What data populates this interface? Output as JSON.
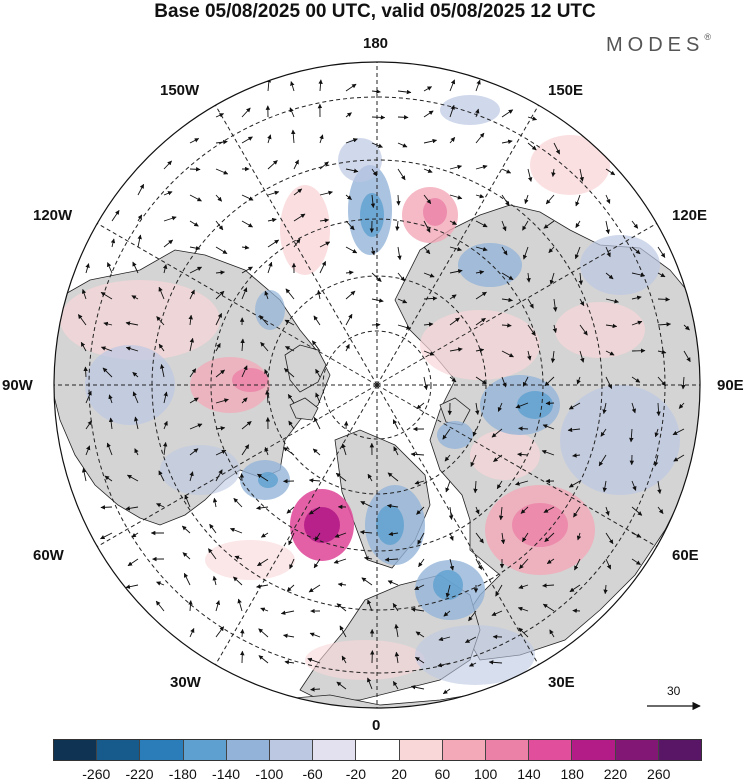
{
  "header": {
    "title": "Base 05/08/2025 00 UTC, valid 05/08/2025 12 UTC",
    "brand": "MODES",
    "brand_mark": "®"
  },
  "map": {
    "projection": "north-polar-stereographic",
    "longitude_labels": {
      "top": "180",
      "upper_left": "150W",
      "upper_right": "150E",
      "left_upper": "120W",
      "right_upper": "120E",
      "left": "90W",
      "right": "90E",
      "left_lower": "60W",
      "right_lower": "60E",
      "lower_left": "30W",
      "lower_right": "30E",
      "bottom": "0"
    },
    "vector_reference": {
      "value": "30"
    }
  },
  "colorbar": {
    "colors": [
      "#0f3352",
      "#175b8c",
      "#2a7db8",
      "#5ea0cf",
      "#93b4d8",
      "#bcc8e2",
      "#e3e1ef",
      "#ffffff",
      "#f9d6d8",
      "#f3a9b8",
      "#ec81a8",
      "#e04e9c",
      "#b31b87",
      "#831775",
      "#591566"
    ],
    "ticks": [
      "-260",
      "-220",
      "-180",
      "-140",
      "-100",
      "-60",
      "-20",
      "20",
      "60",
      "100",
      "140",
      "180",
      "220",
      "260"
    ]
  }
}
